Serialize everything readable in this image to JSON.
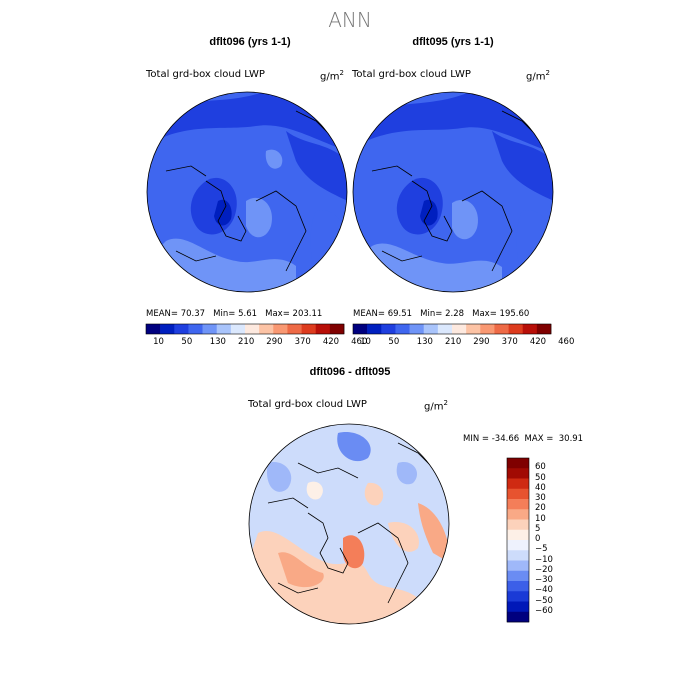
{
  "page": {
    "title": "ANN"
  },
  "colors": {
    "abs_scale": [
      "#00007f",
      "#001fbf",
      "#1f3fdf",
      "#3f66ef",
      "#6f94f7",
      "#a9c4fb",
      "#dbe8fd",
      "#fde9df",
      "#fcc3a5",
      "#f99872",
      "#ee6a46",
      "#dd3b1e",
      "#b80f08",
      "#7f0000"
    ],
    "diff_scale": [
      "#00007f",
      "#0018b8",
      "#1a3ad6",
      "#3c5fe8",
      "#6a8cf3",
      "#9fb8f9",
      "#cddcfb",
      "#eef2fd",
      "#fdf0e7",
      "#fcd2bb",
      "#f9a986",
      "#f47e59",
      "#e7532f",
      "#cf2a12",
      "#a10a03",
      "#7f0000"
    ]
  },
  "panels": [
    {
      "title": "dflt096 (yrs 1-1)",
      "variable": "Total grd-box cloud LWP",
      "units": "g/m",
      "units_exp": "2",
      "mean_label": "MEAN=",
      "mean": "70.37",
      "min_label": "Min=",
      "min": "5.61",
      "max_label": "Max=",
      "max": "203.11"
    },
    {
      "title": "dflt095 (yrs 1-1)",
      "variable": "Total grd-box cloud LWP",
      "units": "g/m",
      "units_exp": "2",
      "mean_label": "MEAN=",
      "mean": "69.51",
      "min_label": "Min=",
      "min": "2.28",
      "max_label": "Max=",
      "max": "195.60"
    }
  ],
  "abs_ticks": [
    "10",
    "50",
    "130",
    "210",
    "290",
    "370",
    "420",
    "460"
  ],
  "diff": {
    "title": "dflt096 - dflt095",
    "variable": "Total grd-box cloud LWP",
    "units": "g/m",
    "units_exp": "2",
    "min_label": "MIN =",
    "min": "-34.66",
    "max_label": "MAX =",
    "max": "30.91",
    "ticks": [
      "60",
      "50",
      "40",
      "30",
      "20",
      "10",
      "5",
      "0",
      "−5",
      "−10",
      "−20",
      "−30",
      "−40",
      "−50",
      "−60"
    ]
  }
}
